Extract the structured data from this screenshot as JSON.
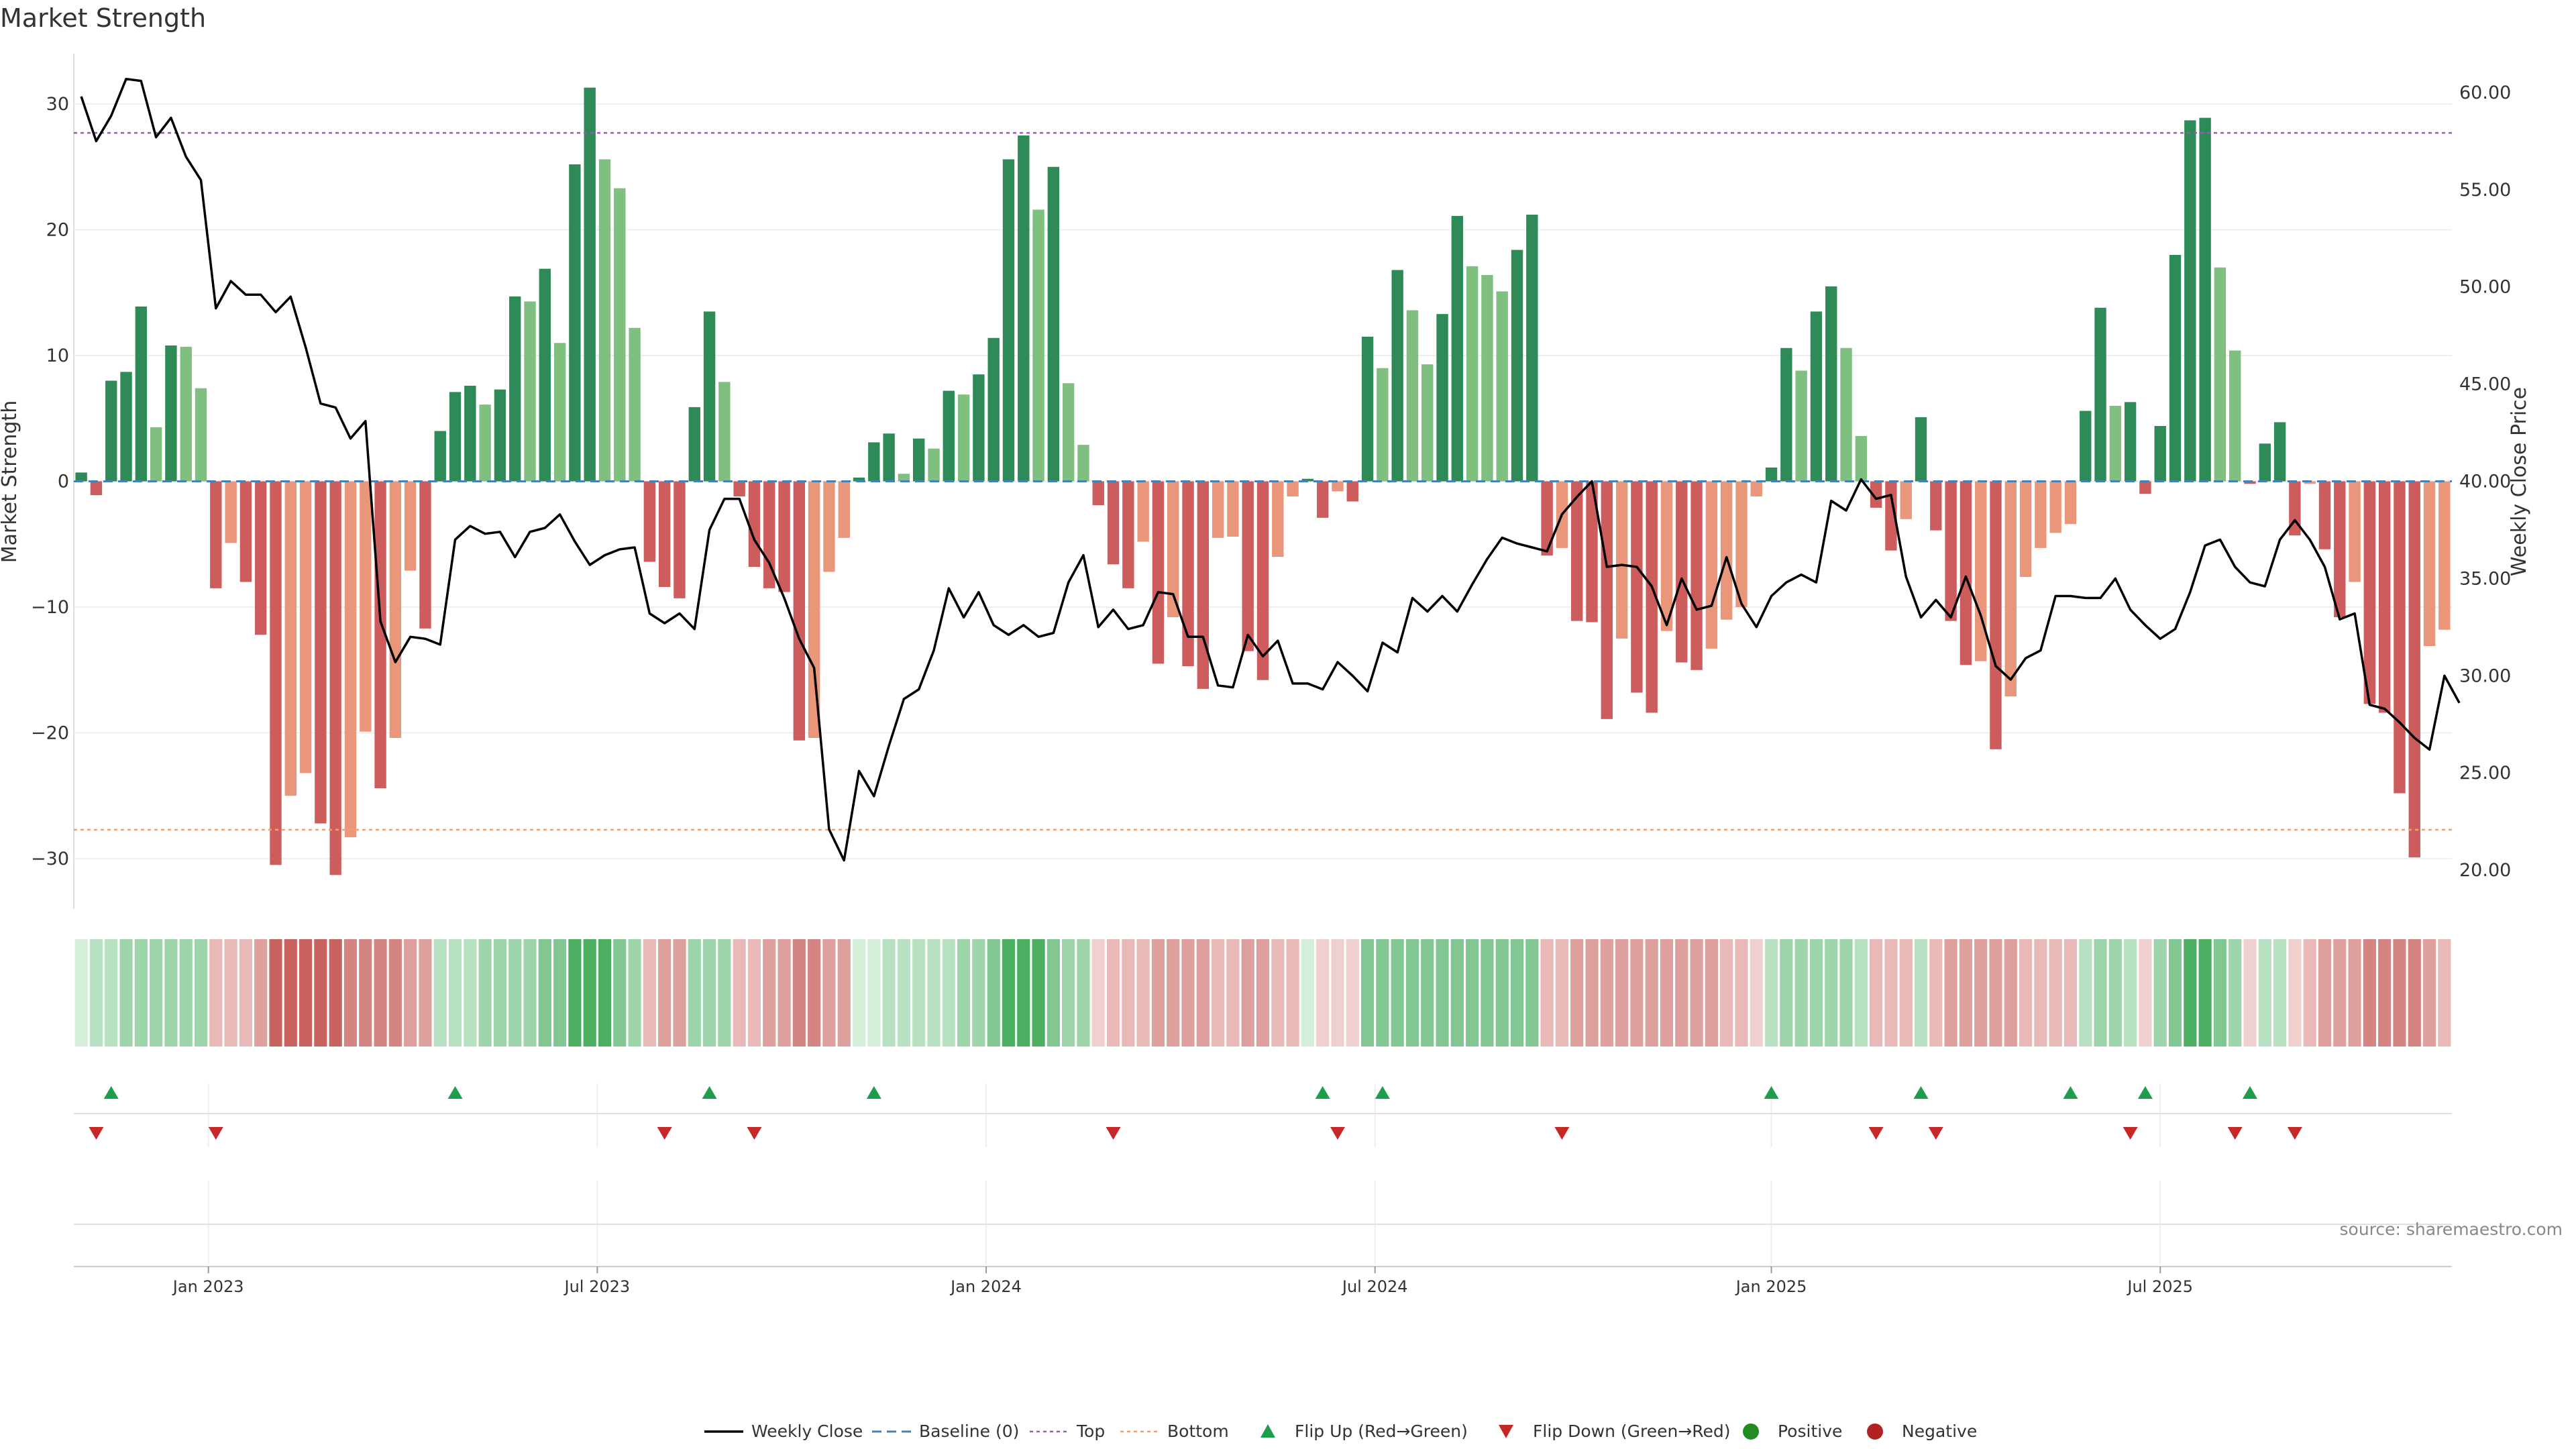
{
  "chart_data": {
    "type": "bar",
    "title": "Market Strength",
    "ylabel_left": "Market Strength",
    "ylabel_right": "Weekly Close Price",
    "left_ylim": [
      -34,
      34
    ],
    "right_ylim": [
      18,
      62
    ],
    "left_ticks": [
      30,
      20,
      10,
      0,
      -10,
      -20,
      -30
    ],
    "left_tick_labels": [
      "30",
      "20",
      "10",
      "0",
      "−10",
      "−20",
      "−30"
    ],
    "right_ticks": [
      60,
      55,
      50,
      45,
      40,
      35,
      30,
      25,
      20
    ],
    "right_tick_labels": [
      "60.00",
      "55.00",
      "50.00",
      "45.00",
      "40.00",
      "35.00",
      "30.00",
      "25.00",
      "20.00"
    ],
    "top_threshold": 27.7,
    "bottom_threshold": -27.7,
    "x_tick_labels": [
      {
        "label": "Jan 2023",
        "week": 8.5
      },
      {
        "label": "Jul 2023",
        "week": 34.5
      },
      {
        "label": "Jan 2024",
        "week": 60.5
      },
      {
        "label": "Jul 2024",
        "week": 86.5
      },
      {
        "label": "Jan 2025",
        "week": 113
      },
      {
        "label": "Jul 2025",
        "week": 139
      }
    ],
    "strength": [
      0.7,
      -1.1,
      8.0,
      8.7,
      13.9,
      4.3,
      10.8,
      10.7,
      7.4,
      -8.5,
      -4.9,
      -8.0,
      -12.2,
      -30.5,
      -25.0,
      -23.2,
      -27.2,
      -31.3,
      -28.3,
      -19.9,
      -24.4,
      -20.4,
      -7.1,
      -11.7,
      4.0,
      7.1,
      7.6,
      6.1,
      7.3,
      14.7,
      14.3,
      16.9,
      11.0,
      25.2,
      31.3,
      25.6,
      23.3,
      12.2,
      -6.4,
      -8.4,
      -9.3,
      5.9,
      13.5,
      7.9,
      -1.2,
      -6.8,
      -8.5,
      -8.8,
      -20.6,
      -20.4,
      -7.2,
      -4.5,
      0.3,
      3.1,
      3.8,
      0.6,
      3.4,
      2.6,
      7.2,
      6.9,
      8.5,
      11.4,
      25.6,
      27.5,
      21.6,
      25.0,
      7.8,
      2.9,
      -1.9,
      -6.6,
      -8.5,
      -4.8,
      -14.5,
      -10.8,
      -14.7,
      -16.5,
      -4.5,
      -4.4,
      -13.5,
      -15.8,
      -6.0,
      -1.2,
      0.2,
      -2.9,
      -0.8,
      -1.6,
      11.5,
      9.0,
      16.8,
      13.6,
      9.3,
      13.3,
      21.1,
      17.1,
      16.4,
      15.1,
      18.4,
      21.2,
      -5.9,
      -5.3,
      -11.1,
      -11.2,
      -18.9,
      -12.5,
      -16.8,
      -18.4,
      -11.9,
      -14.4,
      -15.0,
      -13.3,
      -11.0,
      -10.0,
      -1.2,
      1.1,
      10.6,
      8.8,
      13.5,
      15.5,
      10.6,
      3.6,
      -2.1,
      -5.5,
      -3.0,
      5.1,
      -3.9,
      -11.1,
      -14.6,
      -14.3,
      -21.3,
      -17.1,
      -7.6,
      -5.3,
      -4.1,
      -3.4,
      5.6,
      13.8,
      6.0,
      6.3,
      -1.0,
      4.4,
      18.0,
      28.7,
      28.9,
      17.0,
      10.4,
      -0.2,
      3.0,
      4.7,
      -4.3,
      -0.2,
      -5.4,
      -10.8,
      -8.0,
      -17.7,
      -18.4,
      -24.8,
      -29.9,
      -13.1,
      -11.8
    ],
    "weekly_close": [
      59.8,
      57.5,
      58.8,
      60.7,
      60.6,
      57.7,
      58.7,
      56.7,
      55.5,
      48.9,
      50.3,
      49.6,
      49.6,
      48.7,
      49.5,
      46.9,
      44.0,
      43.8,
      42.2,
      43.1,
      32.8,
      30.7,
      32.0,
      31.9,
      31.6,
      37.0,
      37.7,
      37.3,
      37.4,
      36.1,
      37.4,
      37.6,
      38.3,
      36.9,
      35.7,
      36.2,
      36.5,
      36.6,
      33.2,
      32.7,
      33.2,
      32.4,
      37.5,
      39.1,
      39.1,
      37.0,
      35.8,
      34.0,
      31.9,
      30.4,
      22.1,
      20.5,
      25.1,
      23.8,
      26.4,
      28.8,
      29.3,
      31.3,
      34.5,
      33.0,
      34.3,
      32.6,
      32.1,
      32.6,
      32.0,
      32.2,
      34.8,
      36.2,
      32.5,
      33.4,
      32.4,
      32.6,
      34.3,
      34.2,
      32.0,
      32.0,
      29.5,
      29.4,
      32.1,
      31.0,
      31.8,
      29.6,
      29.6,
      29.3,
      30.7,
      30.0,
      29.2,
      31.7,
      31.2,
      34.0,
      33.3,
      34.1,
      33.3,
      34.7,
      36.0,
      37.1,
      36.8,
      36.6,
      36.4,
      38.3,
      39.2,
      40.0,
      35.6,
      35.7,
      35.6,
      34.6,
      32.6,
      35.0,
      33.4,
      33.6,
      36.1,
      33.7,
      32.5,
      34.1,
      34.8,
      35.2,
      34.8,
      39.0,
      38.5,
      40.1,
      39.1,
      39.3,
      35.1,
      33.0,
      33.9,
      33.0,
      35.1,
      33.1,
      30.5,
      29.8,
      30.9,
      31.3,
      34.1,
      34.1,
      34.0,
      34.0,
      35.0,
      33.4,
      32.6,
      31.9,
      32.4,
      34.3,
      36.7,
      37.0,
      35.6,
      34.8,
      34.6,
      37.0,
      38.0,
      37.0,
      35.6,
      32.9,
      33.2,
      28.5,
      28.3,
      27.6,
      26.8,
      26.2,
      30.0,
      28.6
    ],
    "heat_levels": [
      1,
      2,
      2,
      3,
      3,
      3,
      3,
      3,
      3,
      -2,
      -2,
      -2,
      -3,
      -5,
      -5,
      -5,
      -5,
      -5,
      -4,
      -4,
      -4,
      -4,
      -3,
      -3,
      2,
      2,
      2,
      3,
      3,
      3,
      3,
      4,
      4,
      5,
      5,
      5,
      4,
      3,
      -2,
      -3,
      -3,
      3,
      3,
      3,
      -2,
      -2,
      -3,
      -3,
      -4,
      -4,
      -3,
      -3,
      1,
      1,
      2,
      2,
      2,
      2,
      2,
      3,
      3,
      4,
      5,
      5,
      5,
      4,
      3,
      3,
      -1,
      -2,
      -2,
      -2,
      -3,
      -3,
      -3,
      -3,
      -2,
      -2,
      -3,
      -3,
      -2,
      -2,
      1,
      -1,
      -1,
      -1,
      4,
      4,
      4,
      4,
      4,
      4,
      4,
      4,
      4,
      4,
      4,
      4,
      -2,
      -2,
      -3,
      -3,
      -3,
      -3,
      -3,
      -3,
      -3,
      -3,
      -3,
      -3,
      -2,
      -2,
      -1,
      2,
      3,
      3,
      3,
      3,
      3,
      2,
      -2,
      -2,
      -2,
      2,
      -2,
      -3,
      -3,
      -3,
      -3,
      -3,
      -2,
      -2,
      -2,
      -2,
      2,
      3,
      3,
      2,
      -1,
      3,
      4,
      5,
      5,
      4,
      3,
      -1,
      2,
      2,
      -1,
      -2,
      -3,
      -3,
      -3,
      -4,
      -4,
      -4,
      -4,
      -3,
      -2
    ],
    "flip_up_weeks": [
      2,
      25,
      42,
      53,
      83,
      87,
      113,
      123,
      133,
      138,
      145
    ],
    "flip_down_weeks": [
      1,
      9,
      39,
      45,
      69,
      84,
      99,
      120,
      124,
      137,
      144,
      148
    ],
    "colors": {
      "strong_positive": "#2e8b57",
      "weak_positive": "#7fbf7f",
      "strong_negative": "#cd5c5c",
      "weak_negative": "#e9967a",
      "line": "#000000",
      "baseline": "#4682b4",
      "top": "#9b59b6",
      "bottom": "#f0a070",
      "flip_up": "#1e9e4a",
      "flip_down": "#c62828",
      "positive_dot": "#228b22",
      "negative_dot": "#b22222"
    },
    "legend": [
      {
        "key": "line",
        "label": "Weekly Close"
      },
      {
        "key": "baseline",
        "label": "Baseline (0)"
      },
      {
        "key": "top",
        "label": "Top"
      },
      {
        "key": "bottom",
        "label": "Bottom"
      },
      {
        "key": "flipup",
        "label": "Flip Up (Red→Green)"
      },
      {
        "key": "flipdown",
        "label": "Flip Down (Green→Red)"
      },
      {
        "key": "positive",
        "label": "Positive"
      },
      {
        "key": "negative",
        "label": "Negative"
      }
    ]
  },
  "source_text": "source: sharemaestro.com"
}
